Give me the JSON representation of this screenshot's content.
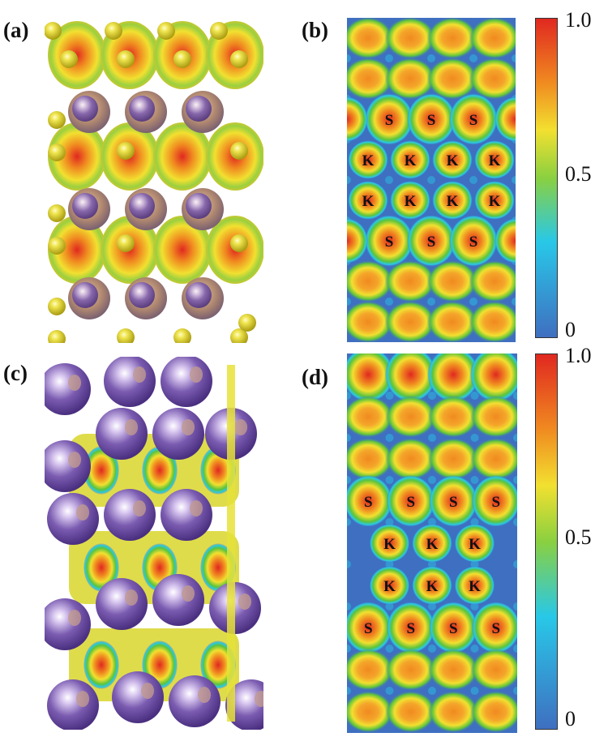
{
  "panels": {
    "a": {
      "label": "(a)"
    },
    "b": {
      "label": "(b)",
      "colorbar": {
        "ticks": [
          "1.0",
          "0.5",
          "0"
        ]
      },
      "rows": [
        {
          "type": "blob",
          "count": 4,
          "labels": []
        },
        {
          "type": "blob",
          "count": 4,
          "labels": []
        },
        {
          "type": "S",
          "count": 3,
          "labels": [
            "S",
            "S",
            "S"
          ]
        },
        {
          "type": "K",
          "count": 4,
          "labels": [
            "K",
            "K",
            "K",
            "K"
          ]
        },
        {
          "type": "K",
          "count": 4,
          "labels": [
            "K",
            "K",
            "K",
            "K"
          ]
        },
        {
          "type": "S",
          "count": 3,
          "labels": [
            "S",
            "S",
            "S"
          ]
        },
        {
          "type": "blob",
          "count": 4,
          "labels": []
        },
        {
          "type": "blob",
          "count": 4,
          "labels": []
        }
      ]
    },
    "c": {
      "label": "(c)"
    },
    "d": {
      "label": "(d)",
      "colorbar": {
        "ticks": [
          "1.0",
          "0.5",
          "0"
        ]
      },
      "rows": [
        {
          "type": "big",
          "count": 4,
          "labels": []
        },
        {
          "type": "blob",
          "count": 4,
          "labels": []
        },
        {
          "type": "blob",
          "count": 4,
          "labels": []
        },
        {
          "type": "S",
          "count": 4,
          "labels": [
            "S",
            "S",
            "S",
            "S"
          ]
        },
        {
          "type": "K",
          "count": 3,
          "labels": [
            "K",
            "K",
            "K"
          ]
        },
        {
          "type": "K",
          "count": 3,
          "labels": [
            "K",
            "K",
            "K"
          ]
        },
        {
          "type": "S",
          "count": 4,
          "labels": [
            "S",
            "S",
            "S",
            "S"
          ]
        },
        {
          "type": "blob",
          "count": 4,
          "labels": []
        },
        {
          "type": "blob",
          "count": 4,
          "labels": []
        }
      ]
    }
  },
  "colors": {
    "background_blue": "#3f6fc0",
    "cyan": "#28c8e8",
    "green": "#5dc43a",
    "yellow": "#f2e030",
    "orange": "#f08a20",
    "red": "#e02820",
    "k_atom": "#7a5bb0",
    "s_atom": "#e8dc30"
  }
}
